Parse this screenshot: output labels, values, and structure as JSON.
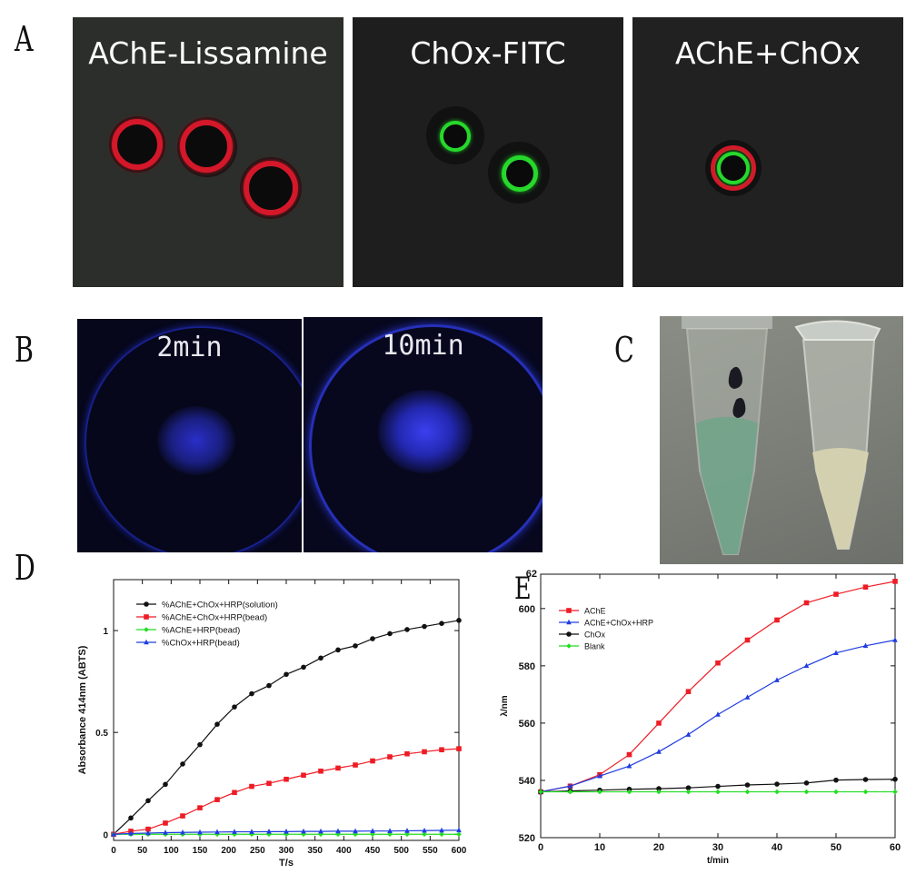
{
  "panels": {
    "A": {
      "letter": "A",
      "images": [
        {
          "title": "AChE-Lissamine"
        },
        {
          "title": "ChOx-FITC"
        },
        {
          "title": "AChE+ChOx"
        }
      ]
    },
    "B": {
      "letter": "B",
      "images": [
        {
          "title": "2min"
        },
        {
          "title": "10min"
        }
      ]
    },
    "C": {
      "letter": "C"
    },
    "D": {
      "letter": "D"
    },
    "E": {
      "letter": "E"
    }
  },
  "colors": {
    "red": "#ee1c25",
    "green": "#22dd22",
    "blue": "#1f3de0",
    "black": "#111111"
  },
  "chart_data": [
    {
      "panel": "D",
      "type": "line",
      "title": "",
      "xlabel": "T/s",
      "ylabel": "Absorbance 414nm (ABTS)",
      "xlim": [
        0,
        600
      ],
      "ylim": [
        -0.03,
        1.25
      ],
      "xticks": [
        0,
        50,
        100,
        150,
        200,
        250,
        300,
        350,
        400,
        450,
        500,
        550,
        600
      ],
      "yticks": [
        0,
        0.5,
        1
      ],
      "ytick_labels": [
        "0",
        "0.5",
        "1"
      ],
      "grid": false,
      "legend": "top-left",
      "x": [
        0,
        30,
        60,
        90,
        120,
        150,
        180,
        210,
        240,
        270,
        300,
        330,
        360,
        390,
        420,
        450,
        480,
        510,
        540,
        570,
        600
      ],
      "series": [
        {
          "name": "%AChE+ChOx+HRP(solution)",
          "color": "#111111",
          "marker": "circle",
          "values": [
            0.0,
            0.08,
            0.165,
            0.245,
            0.345,
            0.44,
            0.54,
            0.625,
            0.69,
            0.73,
            0.785,
            0.82,
            0.865,
            0.905,
            0.925,
            0.96,
            0.985,
            1.005,
            1.02,
            1.035,
            1.05
          ]
        },
        {
          "name": "%AChE+ChOx+HRP(bead)",
          "color": "#ee1c25",
          "marker": "square",
          "values": [
            0.0,
            0.015,
            0.025,
            0.055,
            0.09,
            0.13,
            0.17,
            0.205,
            0.235,
            0.25,
            0.27,
            0.29,
            0.31,
            0.325,
            0.34,
            0.36,
            0.38,
            0.395,
            0.405,
            0.415,
            0.42
          ]
        },
        {
          "name": "%AChE+HRP(bead)",
          "color": "#22dd22",
          "marker": "diamond",
          "values": [
            0.0,
            0.0,
            0.0,
            0.0,
            0.0,
            0.0,
            0.0,
            0.0,
            0.0,
            0.0,
            0.0,
            0.0,
            0.0,
            0.0,
            0.0,
            0.0,
            0.0,
            0.0,
            0.0,
            0.0,
            0.0
          ]
        },
        {
          "name": "%ChOx+HRP(bead)",
          "color": "#1f3de0",
          "marker": "triangle",
          "values": [
            0.0,
            0.004,
            0.006,
            0.008,
            0.009,
            0.01,
            0.011,
            0.012,
            0.012,
            0.013,
            0.013,
            0.014,
            0.014,
            0.015,
            0.015,
            0.016,
            0.016,
            0.017,
            0.018,
            0.019,
            0.02
          ]
        }
      ]
    },
    {
      "panel": "E",
      "type": "line",
      "title": "",
      "xlabel": "t/min",
      "ylabel": "λ/nm",
      "xlim": [
        0,
        60
      ],
      "ylim": [
        520,
        612
      ],
      "xticks": [
        0,
        10,
        20,
        30,
        40,
        50,
        60
      ],
      "yticks": [
        520,
        540,
        560,
        580,
        600
      ],
      "top_tick_label": "62",
      "grid": false,
      "legend": "top-left",
      "x": [
        0,
        5,
        10,
        15,
        20,
        25,
        30,
        35,
        40,
        45,
        50,
        55,
        60
      ],
      "series": [
        {
          "name": "AChE",
          "color": "#ee1c25",
          "marker": "square",
          "values": [
            536,
            538,
            542,
            549,
            560,
            571,
            581,
            589,
            596,
            602,
            605,
            607.5,
            609.5
          ]
        },
        {
          "name": "AChE+ChOx+HRP",
          "color": "#1f3de0",
          "marker": "triangle",
          "values": [
            536,
            538,
            541.5,
            545,
            550,
            556,
            563,
            569,
            575,
            580,
            584.5,
            587,
            589
          ]
        },
        {
          "name": "ChOx",
          "color": "#111111",
          "marker": "circle",
          "values": [
            536,
            536.3,
            536.6,
            536.9,
            537.1,
            537.4,
            537.9,
            538.4,
            538.7,
            539.1,
            540.1,
            540.3,
            540.4
          ]
        },
        {
          "name": "Blank",
          "color": "#22dd22",
          "marker": "diamond",
          "values": [
            536,
            536,
            536,
            536,
            536,
            536,
            536,
            536,
            536,
            536,
            536,
            536,
            536
          ]
        }
      ]
    }
  ]
}
